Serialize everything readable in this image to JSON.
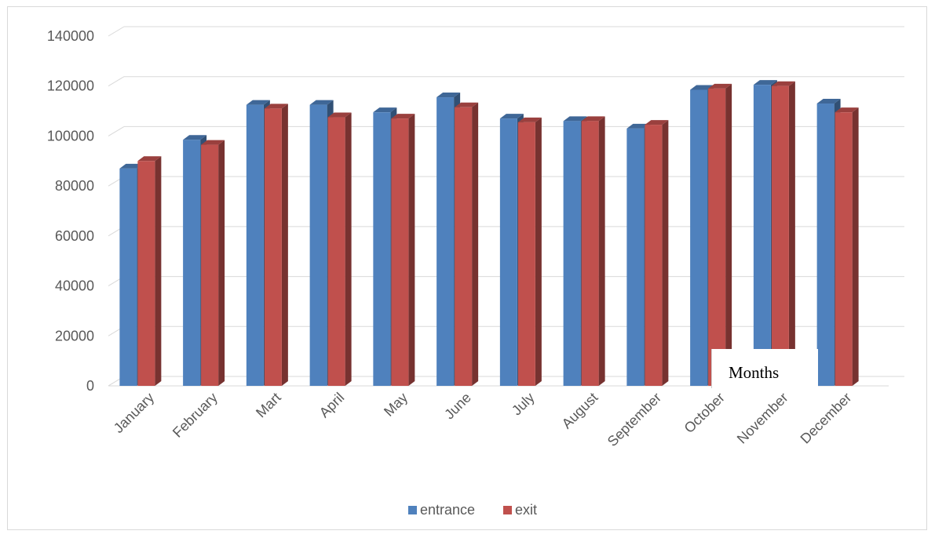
{
  "chart_data": {
    "type": "bar",
    "title": "",
    "xlabel": "",
    "ylabel": "",
    "categories": [
      "January",
      "February",
      "Mart",
      "April",
      "May",
      "June",
      "July",
      "August",
      "September",
      "October",
      "November",
      "December"
    ],
    "series": [
      {
        "name": "entrance",
        "color": "#4f81bd",
        "values": [
          87000,
          98500,
          112500,
          112500,
          109500,
          115500,
          107000,
          106000,
          103000,
          118500,
          120500,
          113000
        ]
      },
      {
        "name": "exit",
        "color": "#c0504d",
        "values": [
          90000,
          96500,
          111000,
          107500,
          107000,
          111500,
          105500,
          106000,
          104500,
          119000,
          120000,
          109500
        ]
      }
    ],
    "ylim": [
      0,
      140000
    ],
    "yticks": [
      "0",
      "20000",
      "40000",
      "60000",
      "80000",
      "100000",
      "120000",
      "140000"
    ],
    "grid": true,
    "legend_position": "bottom",
    "annotation": "Months"
  }
}
